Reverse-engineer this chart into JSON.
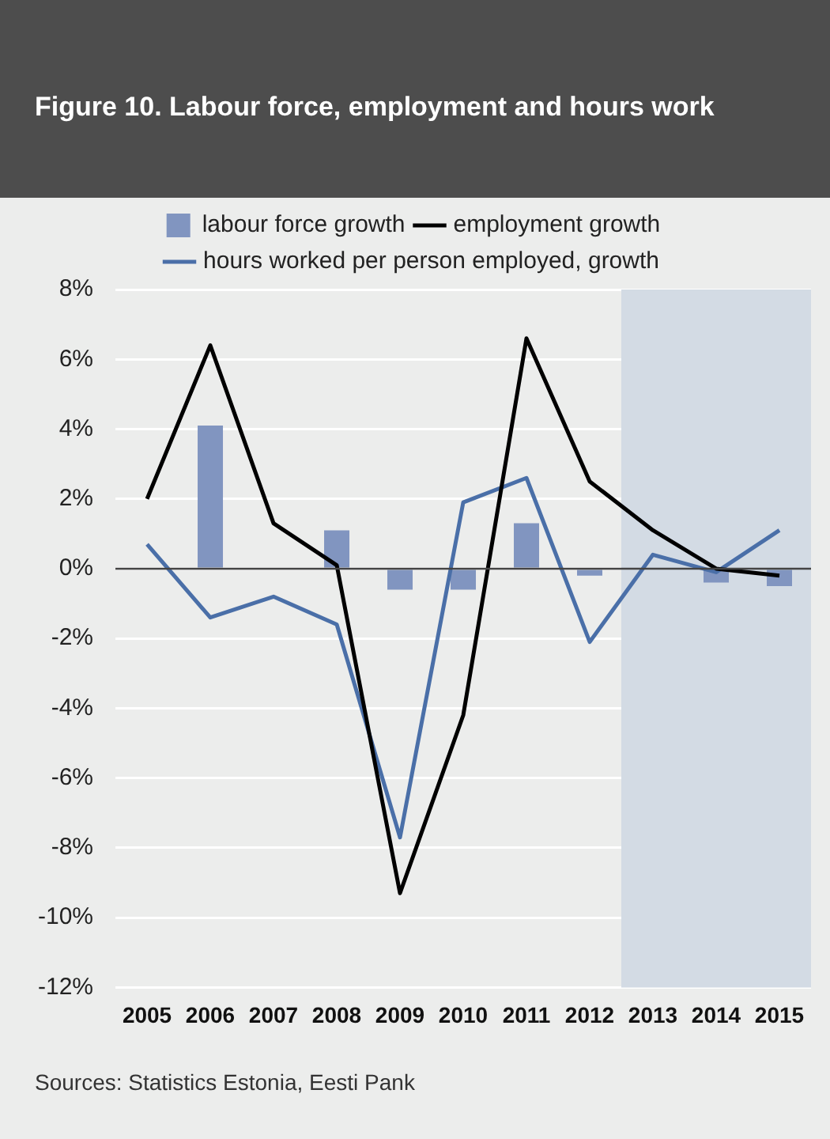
{
  "chart_data": {
    "type": "bar",
    "title": "Figure 10. Labour force, employment and hours work",
    "categories": [
      "2005",
      "2006",
      "2007",
      "2008",
      "2009",
      "2010",
      "2011",
      "2012",
      "2013",
      "2014",
      "2015"
    ],
    "series": [
      {
        "name": "labour force growth",
        "color": "#8195c0",
        "values": [
          0,
          4.1,
          0,
          1.1,
          -0.6,
          -0.6,
          1.3,
          -0.2,
          0,
          -0.4,
          -0.5
        ]
      },
      {
        "name": "employment growth",
        "type": "line",
        "color": "#000000",
        "values": [
          2.0,
          6.4,
          1.3,
          0.1,
          -9.3,
          -4.2,
          6.6,
          2.5,
          1.1,
          0.0,
          -0.2
        ]
      },
      {
        "name": "hours worked per person employed, growth",
        "type": "line",
        "color": "#4a6fa8",
        "values": [
          0.7,
          -1.4,
          -0.8,
          -1.6,
          -7.7,
          1.9,
          2.6,
          -2.1,
          0.4,
          -0.1,
          1.1
        ]
      }
    ],
    "ylim": [
      -12,
      8
    ],
    "yticks": [
      {
        "value": -12,
        "label": "-12%"
      },
      {
        "value": -10,
        "label": "-10%"
      },
      {
        "value": -8,
        "label": "-8%"
      },
      {
        "value": -6,
        "label": "-6%"
      },
      {
        "value": -4,
        "label": "-4%"
      },
      {
        "value": -2,
        "label": "-2%"
      },
      {
        "value": 0,
        "label": "0%"
      },
      {
        "value": 2,
        "label": "2%"
      },
      {
        "value": 4,
        "label": "4%"
      },
      {
        "value": 6,
        "label": "6%"
      },
      {
        "value": 8,
        "label": "8%"
      }
    ],
    "bands": [
      {
        "axis": "x",
        "from": "2013",
        "to": "2015",
        "color": "#d3dbe4"
      }
    ],
    "grid": "y",
    "legend": "top",
    "marker": "none",
    "line_style": "solid",
    "annotations": [
      "Sources: Statistics Estonia, Eesti Pank"
    ]
  }
}
